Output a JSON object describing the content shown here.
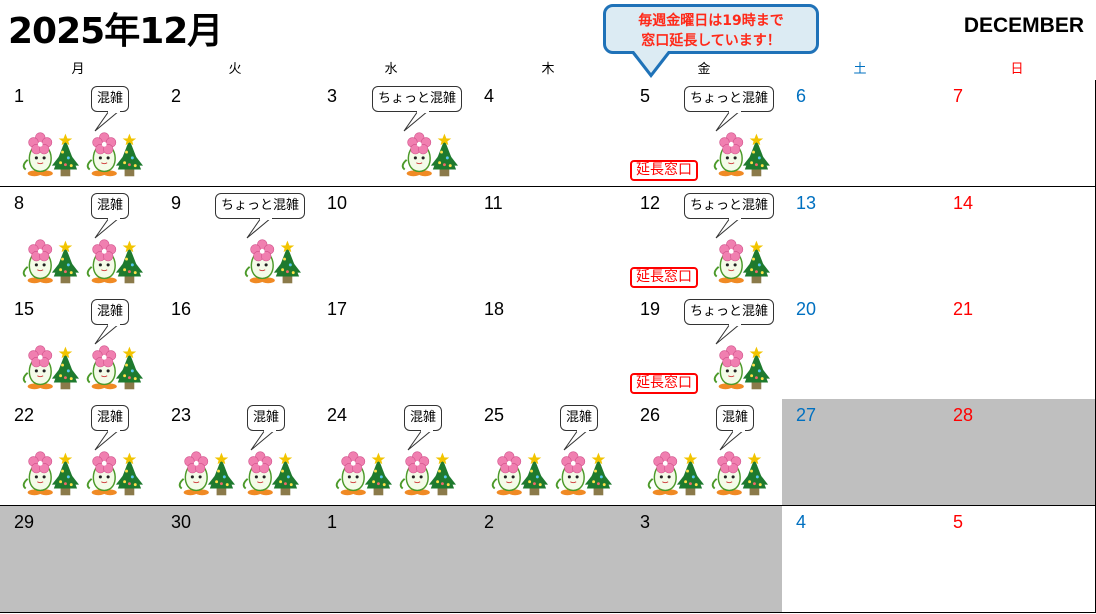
{
  "header": {
    "title": "2025年12月",
    "month_en": "DECEMBER",
    "notice": [
      "毎週金曜日は19時まで",
      "窓口延長しています！"
    ]
  },
  "colors": {
    "saturday": "#0070c0",
    "sunday": "#ff0000",
    "weekday": "#000000",
    "next_month_grey": "#bfbfbf",
    "notice_bg": "#dcebf3",
    "notice_border": "#1f72b8",
    "notice_text": "#ff2a1a"
  },
  "weekdays": [
    {
      "label": "月",
      "type": "weekday"
    },
    {
      "label": "火",
      "type": "weekday"
    },
    {
      "label": "水",
      "type": "weekday"
    },
    {
      "label": "木",
      "type": "weekday"
    },
    {
      "label": "金",
      "type": "weekday"
    },
    {
      "label": "土",
      "type": "saturday"
    },
    {
      "label": "日",
      "type": "sunday"
    }
  ],
  "labels": {
    "busy": "混雑",
    "slightly_busy": "ちょっと混雑",
    "extended": "延長窓口"
  },
  "weeks": [
    [
      {
        "day": "1",
        "status": "busy",
        "mascots": 2
      },
      {
        "day": "2"
      },
      {
        "day": "3",
        "status": "slightly_busy",
        "mascots": 1
      },
      {
        "day": "4"
      },
      {
        "day": "5",
        "status": "slightly_busy",
        "mascots": 1,
        "extended": true
      },
      {
        "day": "6"
      },
      {
        "day": "7"
      }
    ],
    [
      {
        "day": "8",
        "status": "busy",
        "mascots": 2
      },
      {
        "day": "9",
        "status": "slightly_busy",
        "mascots": 1
      },
      {
        "day": "10"
      },
      {
        "day": "11"
      },
      {
        "day": "12",
        "status": "slightly_busy",
        "mascots": 1,
        "extended": true
      },
      {
        "day": "13"
      },
      {
        "day": "14"
      }
    ],
    [
      {
        "day": "15",
        "status": "busy",
        "mascots": 2
      },
      {
        "day": "16"
      },
      {
        "day": "17"
      },
      {
        "day": "18"
      },
      {
        "day": "19",
        "status": "slightly_busy",
        "mascots": 1,
        "extended": true
      },
      {
        "day": "20"
      },
      {
        "day": "21"
      }
    ],
    [
      {
        "day": "22",
        "status": "busy",
        "mascots": 2
      },
      {
        "day": "23",
        "status": "busy",
        "mascots": 2
      },
      {
        "day": "24",
        "status": "busy",
        "mascots": 2
      },
      {
        "day": "25",
        "status": "busy",
        "mascots": 2
      },
      {
        "day": "26",
        "status": "busy",
        "mascots": 2
      },
      {
        "day": "27",
        "grey": true
      },
      {
        "day": "28",
        "grey": true
      }
    ],
    [
      {
        "day": "29",
        "grey": true
      },
      {
        "day": "30",
        "grey": true
      },
      {
        "day": "1",
        "grey": true
      },
      {
        "day": "2",
        "grey": true
      },
      {
        "day": "3",
        "grey": true
      },
      {
        "day": "4"
      },
      {
        "day": "5"
      }
    ]
  ]
}
